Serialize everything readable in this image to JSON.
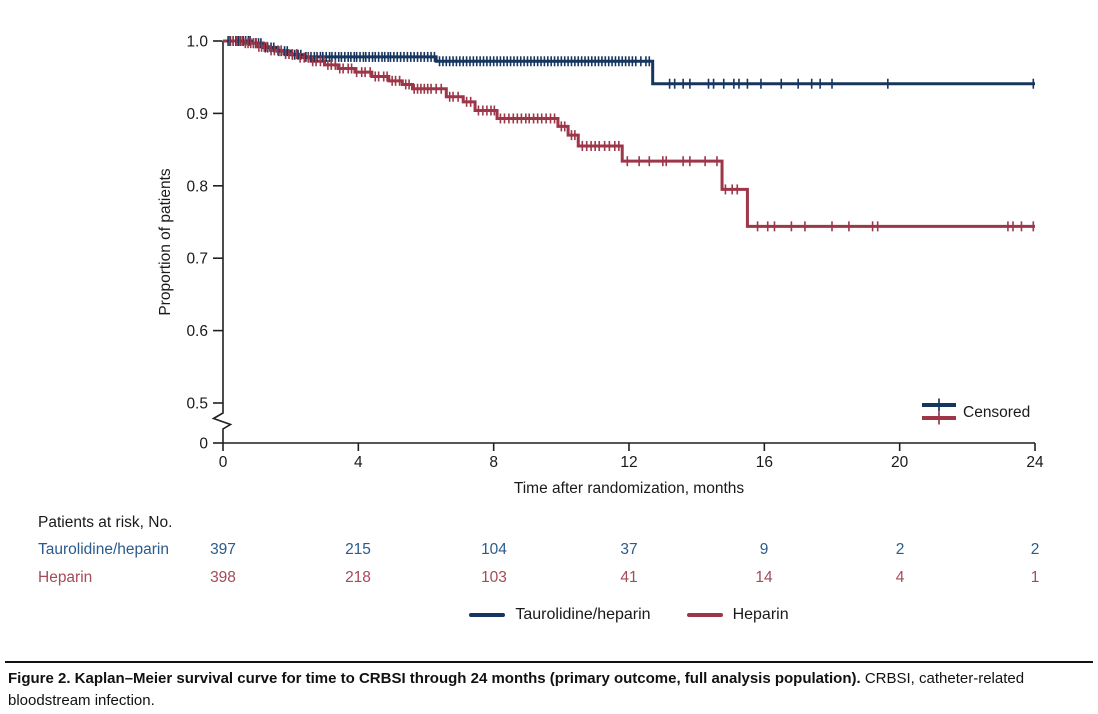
{
  "colors": {
    "blue_line": "#16365f",
    "red_line": "#9d3648",
    "blue_text": "#2b5a8c",
    "red_text": "#a54a57",
    "axis": "#231f20",
    "text": "#1a1a1a"
  },
  "plot": {
    "y_title": "Proportion of patients",
    "x_title": "Time after randomization, months",
    "censored_label": "Censored"
  },
  "chart_data": {
    "type": "line",
    "subtype": "kaplan-meier-step",
    "title": "",
    "xlabel": "Time after randomization, months",
    "ylabel": "Proportion of patients",
    "x_range": [
      0,
      24
    ],
    "x_ticks": [
      "0",
      "4",
      "8",
      "12",
      "16",
      "20",
      "24"
    ],
    "y_ticks": [
      {
        "label": "1.0",
        "value": 1.0
      },
      {
        "label": "0.9",
        "value": 0.9
      },
      {
        "label": "0.8",
        "value": 0.8
      },
      {
        "label": "0.7",
        "value": 0.7
      },
      {
        "label": "0.6",
        "value": 0.6
      },
      {
        "label": "0.5",
        "value": 0.5
      }
    ],
    "y_axis_break": {
      "present": true,
      "zero_label": "0"
    },
    "grid": false,
    "legend_position": "bottom-center",
    "censored_marker_label": "Censored",
    "series": [
      {
        "name": "Taurolidine/heparin",
        "color": "blue_line",
        "steps": [
          [
            0,
            1.0
          ],
          [
            0.85,
            0.997
          ],
          [
            1.2,
            0.991
          ],
          [
            1.6,
            0.986
          ],
          [
            2.0,
            0.981
          ],
          [
            2.4,
            0.978
          ],
          [
            6.3,
            0.972
          ],
          [
            12.7,
            0.941
          ]
        ],
        "end_time": 24,
        "censor_times": [
          0.15,
          0.22,
          0.3,
          0.38,
          0.45,
          0.52,
          0.6,
          0.67,
          0.75,
          0.8,
          0.9,
          0.97,
          1.05,
          1.12,
          1.25,
          1.32,
          1.42,
          1.5,
          1.65,
          1.72,
          1.82,
          1.9,
          2.05,
          2.12,
          2.22,
          2.3,
          2.45,
          2.52,
          2.6,
          2.7,
          2.78,
          2.88,
          2.95,
          3.05,
          3.15,
          3.22,
          3.32,
          3.42,
          3.5,
          3.6,
          3.7,
          3.78,
          3.88,
          3.95,
          4.05,
          4.15,
          4.22,
          4.32,
          4.42,
          4.5,
          4.6,
          4.7,
          4.78,
          4.88,
          4.95,
          5.05,
          5.15,
          5.25,
          5.35,
          5.45,
          5.55,
          5.65,
          5.75,
          5.85,
          5.95,
          6.05,
          6.15,
          6.25,
          6.4,
          6.5,
          6.6,
          6.7,
          6.8,
          6.9,
          7.0,
          7.1,
          7.2,
          7.3,
          7.4,
          7.5,
          7.6,
          7.7,
          7.8,
          7.9,
          8.0,
          8.1,
          8.2,
          8.3,
          8.4,
          8.5,
          8.6,
          8.7,
          8.8,
          8.9,
          9.0,
          9.1,
          9.2,
          9.3,
          9.4,
          9.5,
          9.6,
          9.7,
          9.8,
          9.9,
          10.0,
          10.1,
          10.2,
          10.3,
          10.4,
          10.5,
          10.6,
          10.7,
          10.8,
          10.9,
          11.0,
          11.1,
          11.2,
          11.3,
          11.4,
          11.5,
          11.6,
          11.7,
          11.8,
          11.9,
          12.0,
          12.1,
          12.2,
          12.35,
          12.5,
          12.6,
          13.2,
          13.35,
          13.6,
          13.8,
          14.35,
          14.5,
          14.8,
          15.1,
          15.25,
          15.5,
          15.9,
          16.5,
          17.0,
          17.4,
          17.65,
          18.0,
          19.65,
          23.95
        ]
      },
      {
        "name": "Heparin",
        "color": "red_line",
        "steps": [
          [
            0,
            1.0
          ],
          [
            0.6,
            0.997
          ],
          [
            1.0,
            0.992
          ],
          [
            1.4,
            0.987
          ],
          [
            1.8,
            0.982
          ],
          [
            2.2,
            0.977
          ],
          [
            2.6,
            0.972
          ],
          [
            3.0,
            0.967
          ],
          [
            3.4,
            0.962
          ],
          [
            3.9,
            0.957
          ],
          [
            4.4,
            0.951
          ],
          [
            4.9,
            0.945
          ],
          [
            5.3,
            0.94
          ],
          [
            5.6,
            0.934
          ],
          [
            6.6,
            0.923
          ],
          [
            7.1,
            0.916
          ],
          [
            7.45,
            0.904
          ],
          [
            8.1,
            0.893
          ],
          [
            9.9,
            0.882
          ],
          [
            10.2,
            0.87
          ],
          [
            10.5,
            0.855
          ],
          [
            11.8,
            0.834
          ],
          [
            14.75,
            0.795
          ],
          [
            15.5,
            0.744
          ]
        ],
        "end_time": 24,
        "censor_times": [
          0.2,
          0.3,
          0.4,
          0.5,
          0.58,
          0.66,
          0.74,
          0.82,
          0.9,
          0.98,
          1.06,
          1.14,
          1.22,
          1.3,
          1.42,
          1.52,
          1.62,
          1.72,
          1.85,
          1.95,
          2.05,
          2.18,
          2.28,
          2.4,
          2.52,
          2.65,
          2.75,
          2.88,
          2.98,
          3.1,
          3.2,
          3.32,
          3.45,
          3.55,
          3.7,
          3.8,
          3.95,
          4.1,
          4.2,
          4.35,
          4.5,
          4.6,
          4.75,
          4.85,
          5.0,
          5.1,
          5.22,
          5.4,
          5.5,
          5.65,
          5.75,
          5.85,
          5.95,
          6.05,
          6.15,
          6.3,
          6.45,
          6.7,
          6.8,
          6.95,
          7.2,
          7.32,
          7.55,
          7.68,
          7.8,
          7.92,
          8.02,
          8.2,
          8.32,
          8.45,
          8.58,
          8.7,
          8.82,
          8.95,
          9.05,
          9.18,
          9.3,
          9.42,
          9.55,
          9.68,
          9.8,
          10.0,
          10.1,
          10.3,
          10.4,
          10.62,
          10.75,
          10.88,
          11.0,
          11.12,
          11.28,
          11.42,
          11.58,
          11.7,
          11.95,
          12.3,
          12.6,
          13.0,
          13.1,
          13.6,
          13.8,
          14.25,
          14.6,
          14.85,
          15.05,
          15.2,
          15.8,
          16.1,
          16.3,
          16.8,
          17.2,
          18.0,
          18.5,
          19.2,
          19.35,
          23.2,
          23.35,
          23.6,
          23.95
        ]
      }
    ]
  },
  "risk_table": {
    "header": "Patients at risk, No.",
    "rows": [
      {
        "label": "Taurolidine/heparin",
        "counts": [
          "397",
          "215",
          "104",
          "37",
          "9",
          "2",
          "2"
        ]
      },
      {
        "label": "Heparin",
        "counts": [
          "398",
          "218",
          "103",
          "41",
          "14",
          "4",
          "1"
        ]
      }
    ]
  },
  "legend": {
    "items": [
      {
        "label": "Taurolidine/heparin"
      },
      {
        "label": "Heparin"
      }
    ]
  },
  "caption": {
    "bold": "Figure 2. Kaplan–Meier survival curve for time to CRBSI through 24 months (primary outcome, full analysis population).",
    "regular": " CRBSI, catheter-related bloodstream infection."
  }
}
